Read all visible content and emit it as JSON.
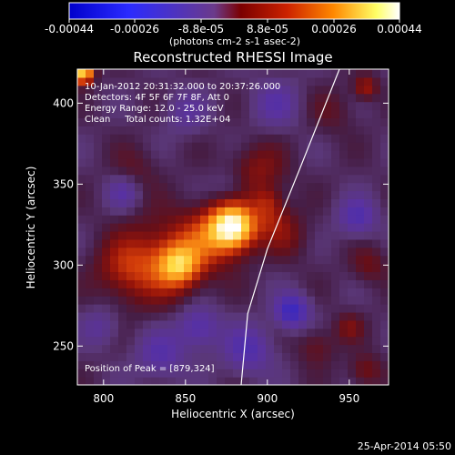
{
  "chart_data": {
    "type": "heatmap",
    "title": "Reconstructed RHESSI Image",
    "xlabel": "Heliocentric X (arcsec)",
    "ylabel": "Heliocentric Y (arcsec)",
    "xlim": [
      784,
      974
    ],
    "ylim": [
      226,
      421
    ],
    "xticks": [
      800,
      850,
      900,
      950
    ],
    "yticks": [
      250,
      300,
      350,
      400
    ],
    "colorbar": {
      "ticks": [
        "-0.00044",
        "-0.00026",
        "-8.8e-05",
        "8.8e-05",
        "0.00026",
        "0.00044"
      ],
      "label": "(photons cm-2 s-1 asec-2)",
      "range": [
        -0.00044,
        0.00044
      ],
      "colormap": [
        "#0000cc",
        "#2b2bff",
        "#6b3a8a",
        "#7b0000",
        "#cc2200",
        "#ff8800",
        "#ffff66",
        "#ffffff"
      ]
    },
    "annotations": [
      "10-Jan-2012 20:31:32.000 to 20:37:26.000",
      "Detectors: 4F 5F 6F 7F 8F, Att 0",
      "Energy Range: 12.0 - 25.0 keV",
      "Clean     Total counts: 1.32E+04"
    ],
    "peak_text": "Position of Peak = [879,324]",
    "peak": [
      879,
      324
    ],
    "limb_points": [
      [
        944,
        421
      ],
      [
        920,
        360
      ],
      [
        900,
        310
      ],
      [
        888,
        270
      ],
      [
        884,
        226
      ]
    ]
  },
  "footer": {
    "date": "25-Apr-2014 05:50"
  }
}
